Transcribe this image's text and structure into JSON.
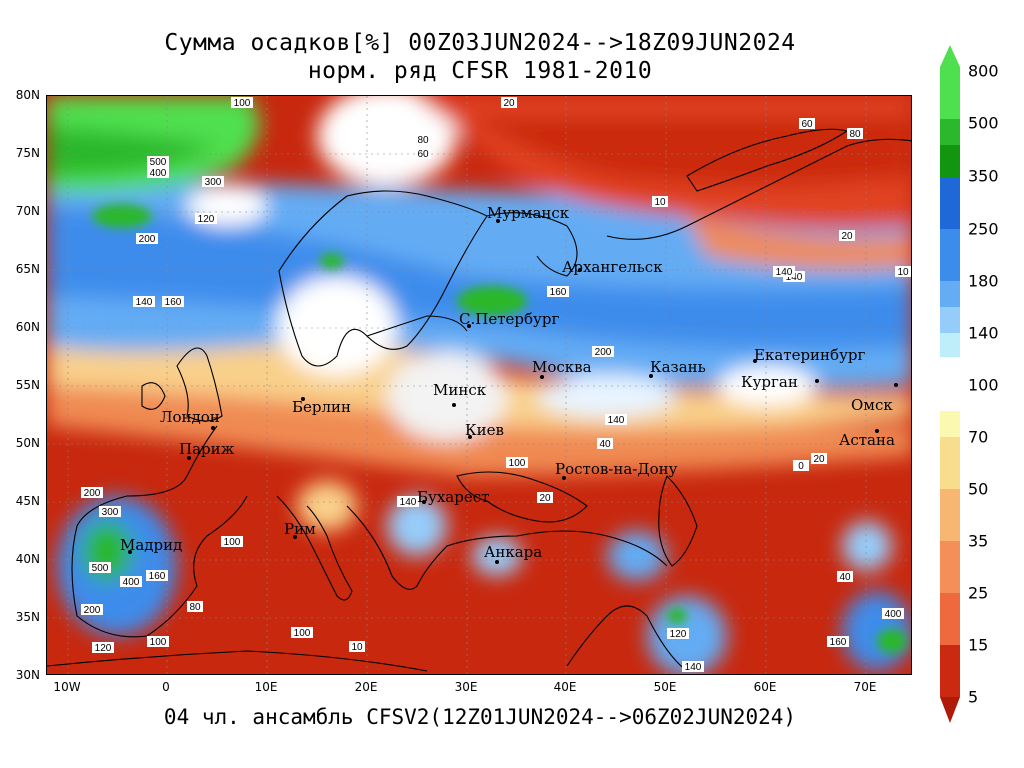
{
  "header": {
    "title_line1": "Сумма осадков[%] 00Z03JUN2024-->18Z09JUN2024",
    "title_line2": "норм. ряд CFSR 1981-2010"
  },
  "footer": {
    "caption": "04 чл. ансамбль CFSV2(12Z01JUN2024-->06Z02JUN2024)"
  },
  "axes": {
    "lat_labels": [
      "80N",
      "75N",
      "70N",
      "65N",
      "60N",
      "55N",
      "50N",
      "45N",
      "40N",
      "35N",
      "30N"
    ],
    "lon_labels": [
      "10W",
      "0",
      "10E",
      "20E",
      "30E",
      "40E",
      "50E",
      "60E",
      "70E"
    ]
  },
  "legend": {
    "labels": [
      "800",
      "500",
      "350",
      "250",
      "180",
      "140",
      "100",
      "70",
      "50",
      "35",
      "25",
      "15",
      "5"
    ],
    "colors_upper": [
      "#4fe04f",
      "#2cb82c",
      "#129612",
      "#1e68d8",
      "#3c8cec",
      "#64acf4",
      "#96ccfa",
      "#bfeefb"
    ],
    "colors_lower": [
      "#fbf9b0",
      "#f9dd8e",
      "#f7b773",
      "#f58f5a",
      "#ee6a3e",
      "#e14220",
      "#cc2a10",
      "#b01a08"
    ]
  },
  "cities": [
    {
      "name": "Мурманск"
    },
    {
      "name": "Архангельск"
    },
    {
      "name": "С.Петербург"
    },
    {
      "name": "Москва"
    },
    {
      "name": "Казань"
    },
    {
      "name": "Екатеринбург"
    },
    {
      "name": "Курган"
    },
    {
      "name": "Омск"
    },
    {
      "name": "Астана"
    },
    {
      "name": "Минск"
    },
    {
      "name": "Киев"
    },
    {
      "name": "Берлин"
    },
    {
      "name": "Лондон"
    },
    {
      "name": "Париж"
    },
    {
      "name": "Ростов-на-Дону"
    },
    {
      "name": "Бухарест"
    },
    {
      "name": "Рим"
    },
    {
      "name": "Мадрид"
    },
    {
      "name": "Анкара"
    }
  ],
  "contour_labels": [
    "20",
    "100",
    "80",
    "60",
    "140",
    "200",
    "160",
    "300",
    "500",
    "400",
    "120",
    "180",
    "40",
    "10",
    "0"
  ]
}
